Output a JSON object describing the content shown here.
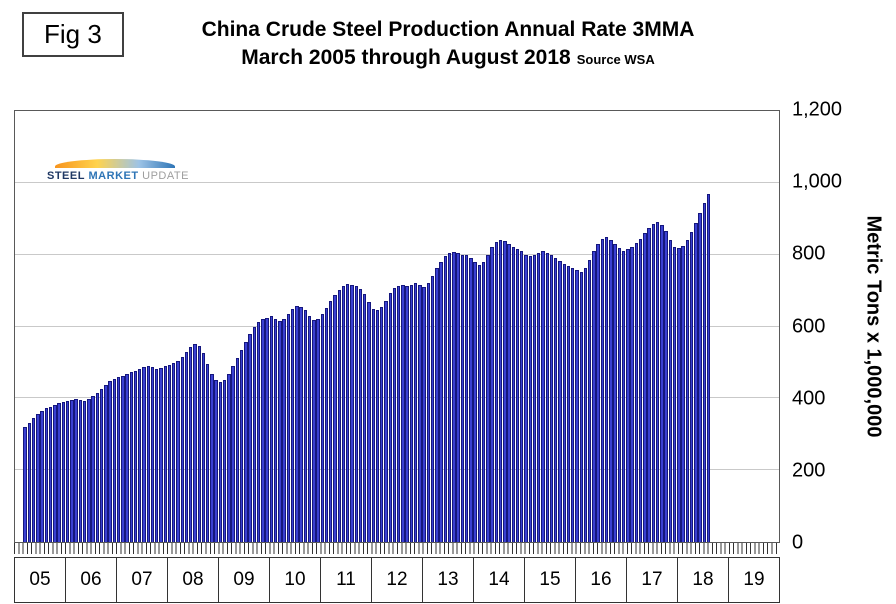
{
  "figure_label": "Fig 3",
  "header": {
    "title_line1": "China Crude Steel Production Annual Rate 3MMA",
    "title_line2": "March 2005 through August 2018",
    "source": "Source WSA"
  },
  "logo": {
    "word1": "STEEL",
    "word2": "MARKET",
    "word3": "UPDATE"
  },
  "colors": {
    "bar_fill": "#3a40d2",
    "bar_border": "#15177e",
    "gridline": "#c9c9c9",
    "axis": "#333333"
  },
  "chart_data": {
    "type": "bar",
    "title": "China Crude Steel Production Annual Rate 3MMA",
    "subtitle": "March 2005 through August 2018",
    "source": "Source WSA",
    "ylabel": "Metric Tons x 1,000,000",
    "ylim": [
      0,
      1200
    ],
    "yticks": [
      0,
      200,
      400,
      600,
      800,
      1000,
      1200
    ],
    "ytick_labels": [
      "0",
      "200",
      "400",
      "600",
      "800",
      "1,000",
      "1,200"
    ],
    "x_axis_years": [
      "05",
      "06",
      "07",
      "08",
      "09",
      "10",
      "11",
      "12",
      "13",
      "14",
      "15",
      "16",
      "17",
      "18",
      "19"
    ],
    "axis_start": "2005-01",
    "axis_end": "2019-12",
    "axis_total_slots": 180,
    "bar_start_slot": 2,
    "first_bar_month": "2005-03",
    "last_bar_month": "2018-08",
    "grid": "on",
    "legend": "none",
    "values": [
      320,
      332,
      345,
      356,
      366,
      372,
      376,
      381,
      386,
      391,
      394,
      396,
      398,
      396,
      394,
      398,
      406,
      416,
      427,
      438,
      448,
      455,
      459,
      463,
      468,
      472,
      477,
      481,
      486,
      489,
      487,
      483,
      485,
      489,
      494,
      499,
      505,
      514,
      528,
      543,
      551,
      547,
      526,
      496,
      468,
      452,
      446,
      452,
      468,
      490,
      512,
      534,
      556,
      578,
      598,
      612,
      620,
      625,
      628,
      622,
      616,
      622,
      636,
      650,
      658,
      655,
      645,
      630,
      618,
      622,
      635,
      652,
      670,
      688,
      702,
      712,
      718,
      716,
      712,
      705,
      690,
      668,
      650,
      645,
      655,
      672,
      692,
      706,
      714,
      716,
      712,
      715,
      720,
      716,
      710,
      720,
      742,
      762,
      780,
      795,
      805,
      808,
      804,
      800,
      798,
      790,
      780,
      772,
      780,
      800,
      820,
      835,
      840,
      838,
      830,
      822,
      815,
      810,
      800,
      795,
      798,
      805,
      810,
      805,
      798,
      790,
      782,
      775,
      768,
      762,
      756,
      752,
      762,
      785,
      810,
      830,
      845,
      850,
      842,
      830,
      818,
      810,
      815,
      822,
      832,
      845,
      860,
      875,
      885,
      890,
      882,
      865,
      840,
      822,
      818,
      825,
      840,
      862,
      888,
      915,
      945,
      968
    ]
  }
}
